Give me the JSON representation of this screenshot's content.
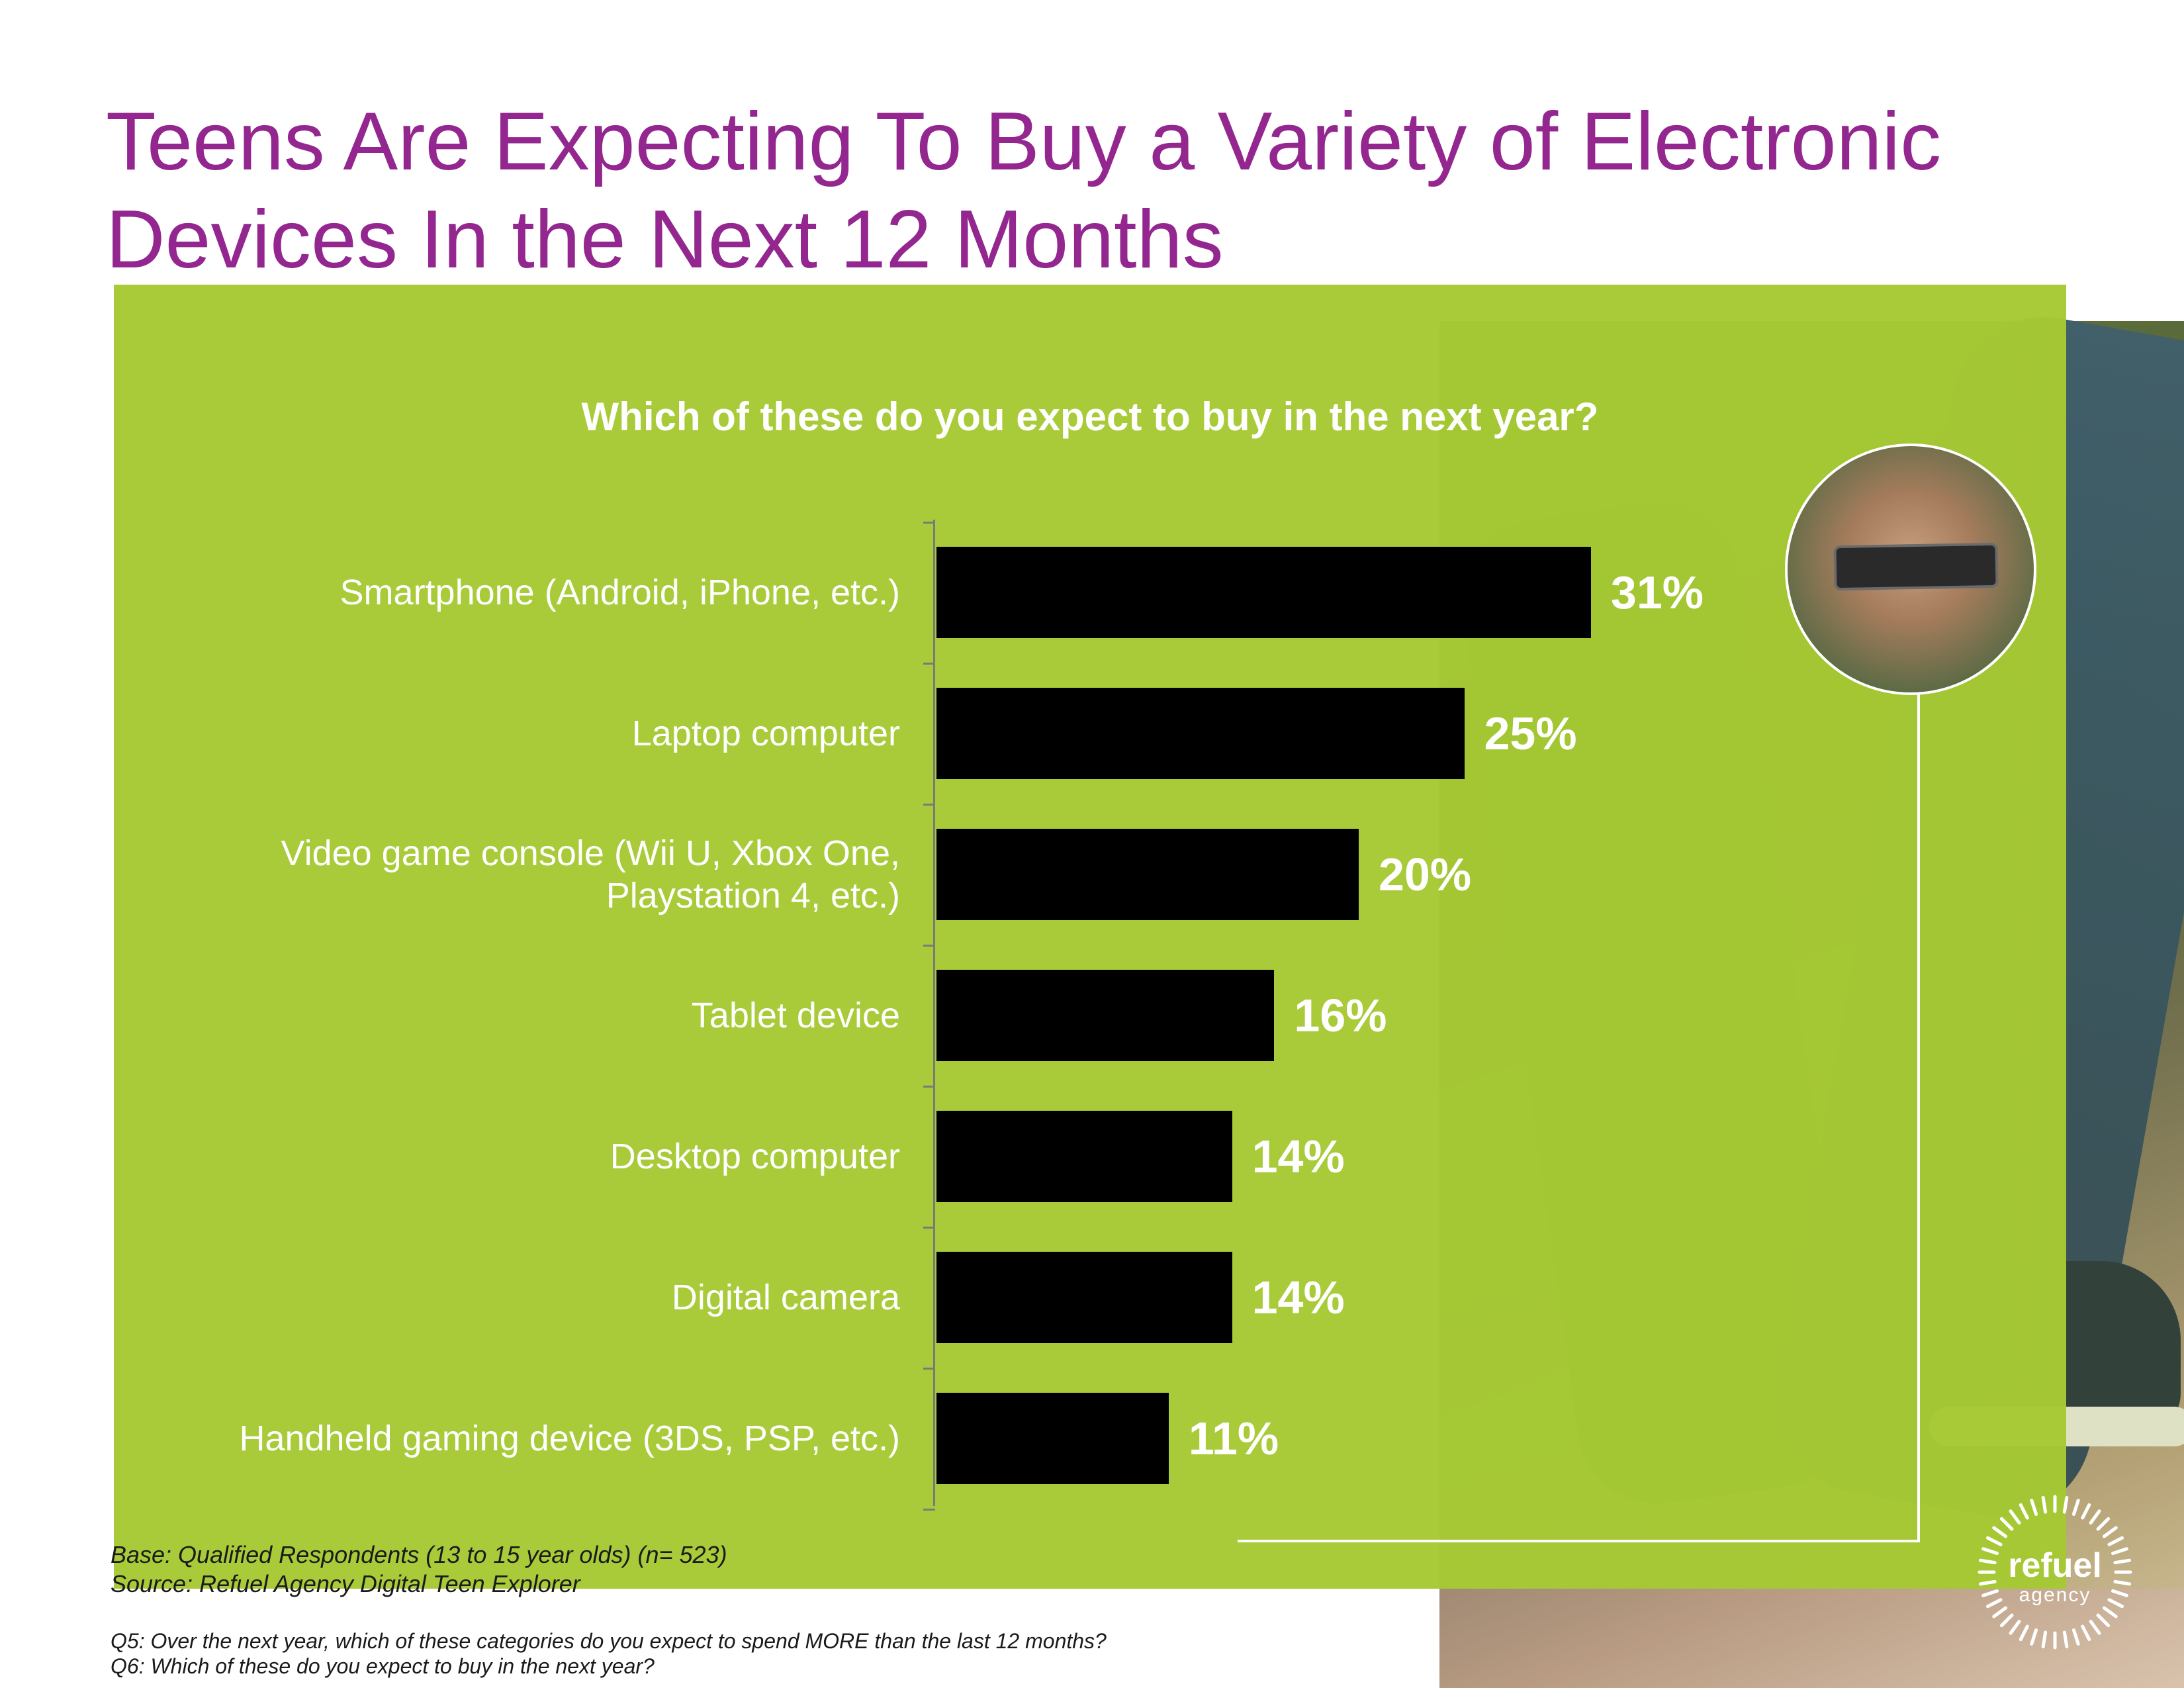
{
  "page": {
    "title_line1": "Teens Are Expecting To Buy a Variety of Electronic",
    "title_line2": "Devices In the Next 12 Months"
  },
  "chart_data": {
    "type": "bar",
    "orientation": "horizontal",
    "title": "Which of these do you expect to buy in the next year?",
    "categories": [
      "Smartphone (Android, iPhone, etc.)",
      "Laptop computer",
      "Video game console (Wii U, Xbox One, Playstation 4, etc.)",
      "Tablet device",
      "Desktop computer",
      "Digital camera",
      "Handheld gaming device (3DS, PSP, etc.)"
    ],
    "category_lines": [
      [
        "Smartphone (Android, iPhone, etc.)"
      ],
      [
        "Laptop computer"
      ],
      [
        "Video game console (Wii U, Xbox One,",
        "Playstation 4, etc.)"
      ],
      [
        "Tablet device"
      ],
      [
        "Desktop computer"
      ],
      [
        "Digital camera"
      ],
      [
        "Handheld gaming device (3DS, PSP, etc.)"
      ]
    ],
    "values": [
      31,
      25,
      20,
      16,
      14,
      14,
      11
    ],
    "value_labels": [
      "31%",
      "25%",
      "20%",
      "16%",
      "14%",
      "14%",
      "11%"
    ],
    "unit": "%",
    "xlim": [
      0,
      31
    ],
    "grid": false,
    "legend": "none",
    "bar_color": "#000000",
    "panel_color": "#a6c934",
    "title_color": "#93278f"
  },
  "footer": {
    "base": "Base: Qualified Respondents (13 to 15 year olds)  (n= 523)",
    "source": "Source: Refuel Agency Digital Teen Explorer",
    "q5": "Q5: Over the next year, which of these categories do you expect to spend MORE than the last 12 months?",
    "q6": "Q6: Which of these do you expect to buy in the next year?"
  },
  "logo": {
    "word": "refuel",
    "sub": "agency"
  }
}
